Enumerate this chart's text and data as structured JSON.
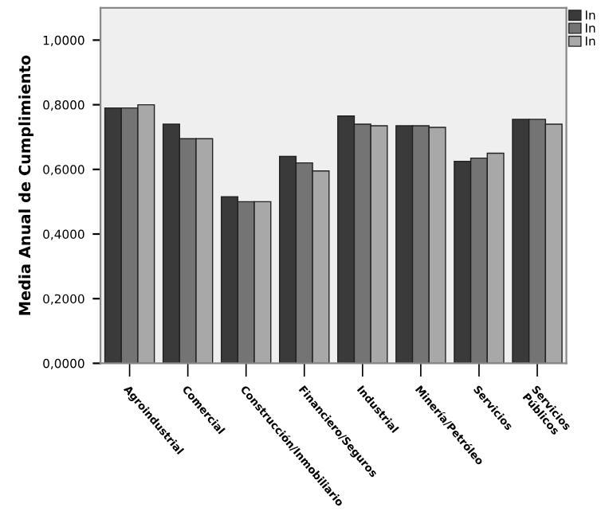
{
  "chart_data": {
    "type": "bar",
    "ylabel": "Media Anual de Cumplimiento",
    "categories": [
      "Agroindustrial",
      "Comercial",
      "Construcción/Inmobiliario",
      "Financiero/Seguros",
      "Industrial",
      "Minería/Petróleo",
      "Servicios",
      "Servicios\nPúblicos"
    ],
    "series": [
      {
        "name": "In",
        "color": "#3a3a3a",
        "values": [
          0.79,
          0.74,
          0.515,
          0.64,
          0.765,
          0.735,
          0.625,
          0.755
        ]
      },
      {
        "name": "In",
        "color": "#747474",
        "values": [
          0.79,
          0.695,
          0.5,
          0.62,
          0.74,
          0.735,
          0.635,
          0.755
        ]
      },
      {
        "name": "In",
        "color": "#a8a8a8",
        "values": [
          0.8,
          0.695,
          0.5,
          0.595,
          0.735,
          0.73,
          0.65,
          0.74
        ]
      }
    ],
    "ylim": [
      0,
      1.1
    ],
    "yticks": [
      {
        "value": 0,
        "label": "0,0000"
      },
      {
        "value": 0.2,
        "label": "0,2000"
      },
      {
        "value": 0.4,
        "label": "0,4000"
      },
      {
        "value": 0.6,
        "label": "0,6000"
      },
      {
        "value": 0.8,
        "label": "0,8000"
      },
      {
        "value": 1.0,
        "label": "1,0000"
      }
    ],
    "grid": false,
    "legend": "top right"
  }
}
